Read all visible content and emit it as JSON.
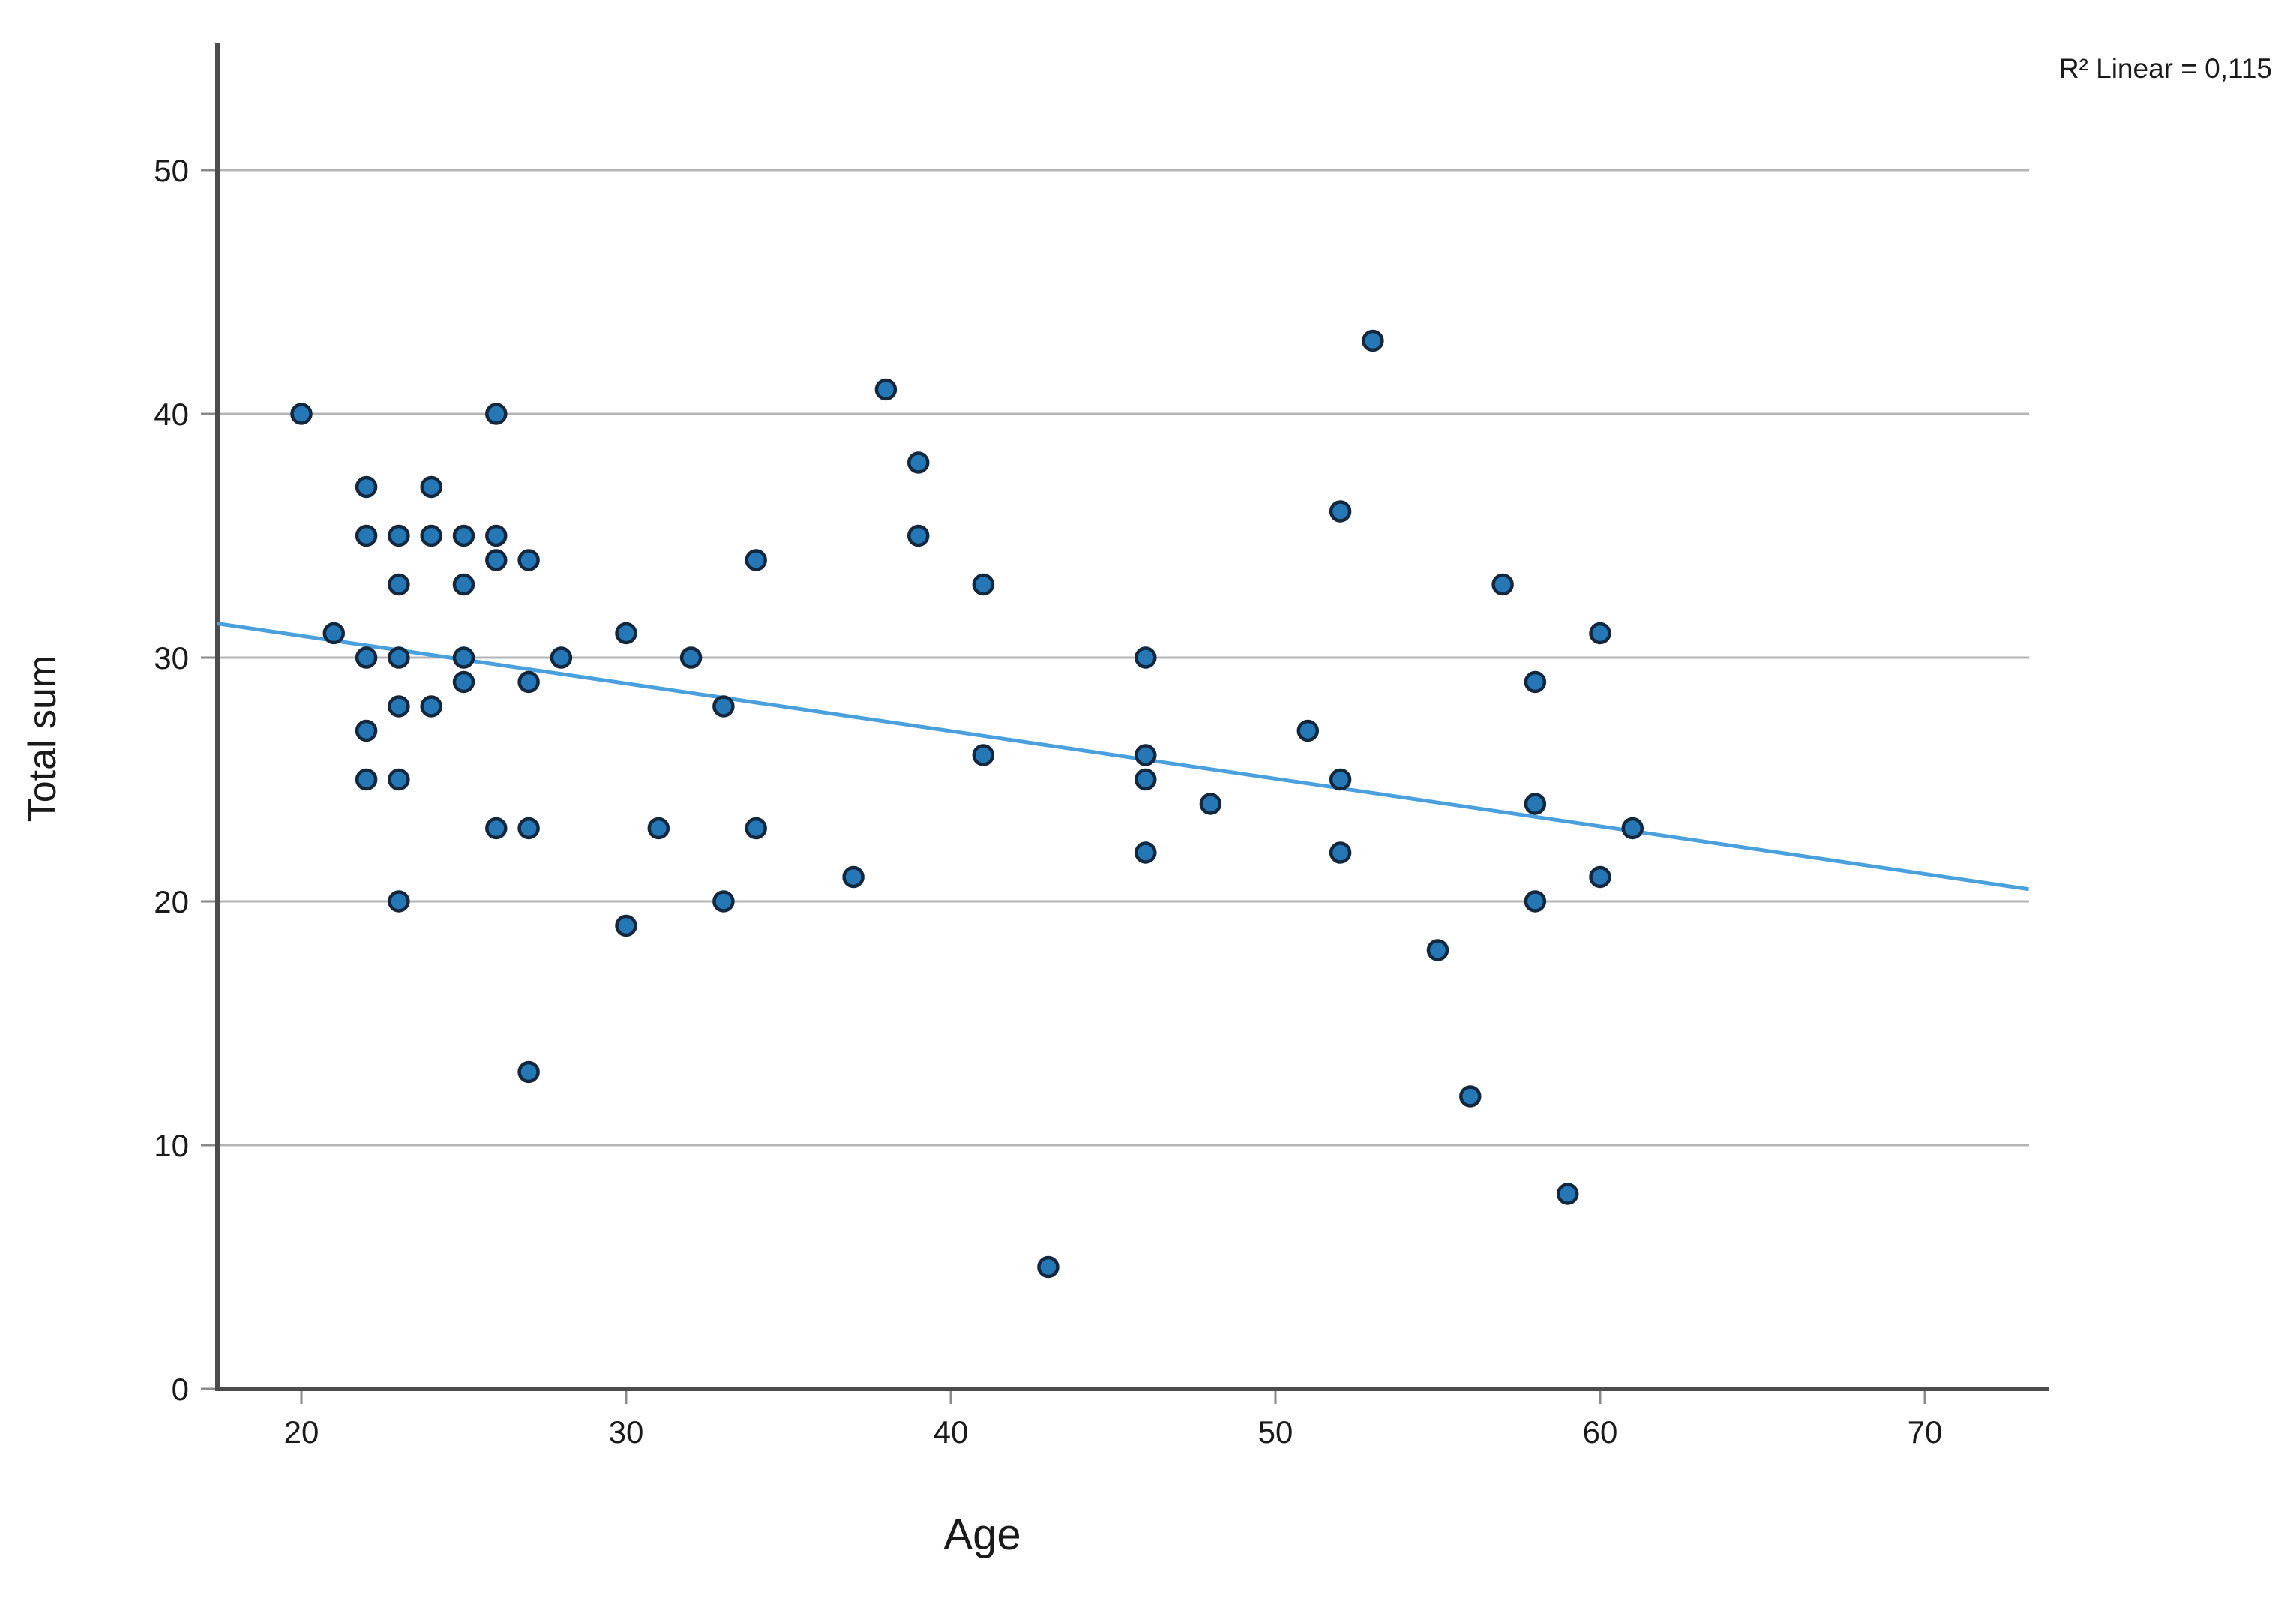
{
  "chart_data": {
    "type": "scatter",
    "title": "",
    "xlabel": "Age",
    "ylabel": "Total sum",
    "annotation": "R² Linear = 0,115",
    "r_squared": "0,115",
    "x_ticks": [
      20,
      30,
      40,
      50,
      60,
      70
    ],
    "y_ticks": [
      0,
      10,
      20,
      30,
      40,
      50
    ],
    "xlim": [
      17.4,
      73.2
    ],
    "ylim": [
      0,
      55.1
    ],
    "grid": "horizontal gridlines only",
    "legend": "none",
    "points": [
      [
        20,
        40
      ],
      [
        21,
        31
      ],
      [
        22,
        37
      ],
      [
        22,
        35
      ],
      [
        22,
        30
      ],
      [
        22,
        27
      ],
      [
        22,
        25
      ],
      [
        23,
        35
      ],
      [
        23,
        33
      ],
      [
        23,
        30
      ],
      [
        23,
        28
      ],
      [
        23,
        25
      ],
      [
        23,
        20
      ],
      [
        24,
        37
      ],
      [
        24,
        35
      ],
      [
        24,
        28
      ],
      [
        25,
        35
      ],
      [
        25,
        33
      ],
      [
        25,
        30
      ],
      [
        25,
        29
      ],
      [
        26,
        40
      ],
      [
        26,
        35
      ],
      [
        26,
        34
      ],
      [
        26,
        23
      ],
      [
        27,
        34
      ],
      [
        27,
        29
      ],
      [
        27,
        23
      ],
      [
        27,
        13
      ],
      [
        28,
        30
      ],
      [
        30,
        31
      ],
      [
        30,
        19
      ],
      [
        31,
        23
      ],
      [
        32,
        30
      ],
      [
        33,
        28
      ],
      [
        33,
        20
      ],
      [
        34,
        34
      ],
      [
        34,
        23
      ],
      [
        37,
        21
      ],
      [
        38,
        41
      ],
      [
        39,
        38
      ],
      [
        39,
        35
      ],
      [
        41,
        33
      ],
      [
        41,
        26
      ],
      [
        43,
        5
      ],
      [
        46,
        30
      ],
      [
        46,
        26
      ],
      [
        46,
        25
      ],
      [
        46,
        22
      ],
      [
        48,
        24
      ],
      [
        51,
        27
      ],
      [
        52,
        36
      ],
      [
        52,
        25
      ],
      [
        52,
        22
      ],
      [
        53,
        43
      ],
      [
        55,
        18
      ],
      [
        56,
        12
      ],
      [
        57,
        33
      ],
      [
        58,
        29
      ],
      [
        58,
        24
      ],
      [
        58,
        20
      ],
      [
        59,
        8
      ],
      [
        60,
        31
      ],
      [
        60,
        21
      ],
      [
        61,
        23
      ]
    ],
    "trendline": {
      "x1": 17.4,
      "y1": 31.4,
      "x2": 73.2,
      "y2": 20.5
    }
  },
  "colors": {
    "background": "#ffffff",
    "point_fill": "#2578b5",
    "point_stroke": "#13283e",
    "trend_line": "#4aa0dc",
    "gridline": "#b5b5b5",
    "tick_mark": "#8a8a8a",
    "axis_line": "#4c4c4c",
    "text": "#1a1a1a",
    "annotation_text": "#3c85c8"
  }
}
